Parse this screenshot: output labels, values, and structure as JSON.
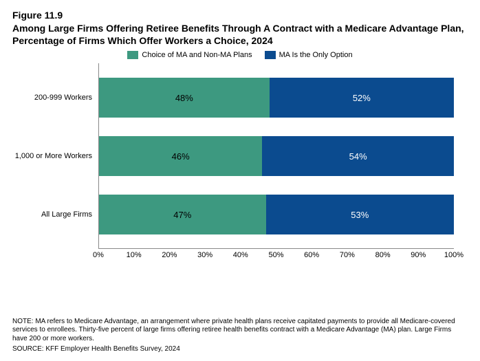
{
  "figure_number": "Figure 11.9",
  "figure_title": "Among Large Firms Offering Retiree Benefits Through A Contract with a Medicare Advantage Plan, Percentage of Firms Which Offer Workers a Choice, 2024",
  "legend": {
    "series_a": {
      "label": "Choice of MA and Non-MA Plans",
      "color": "#3d9980"
    },
    "series_b": {
      "label": "MA Is the Only Option",
      "color": "#0b4b8f"
    }
  },
  "chart": {
    "type": "stacked-bar-horizontal",
    "background_color": "#ffffff",
    "border_color": "#888888",
    "xlim": [
      0,
      100
    ],
    "xtick_step": 10,
    "xticks": [
      "0%",
      "10%",
      "20%",
      "30%",
      "40%",
      "50%",
      "60%",
      "70%",
      "80%",
      "90%",
      "100%"
    ],
    "bar_fontsize": 13,
    "label_fontsize": 11,
    "rows": [
      {
        "category": "200-999 Workers",
        "a_value": 48,
        "a_label": "48%",
        "b_value": 52,
        "b_label": "52%"
      },
      {
        "category": "1,000 or More Workers",
        "a_value": 46,
        "a_label": "46%",
        "b_value": 54,
        "b_label": "54%"
      },
      {
        "category": "All Large Firms",
        "a_value": 47,
        "a_label": "47%",
        "b_value": 53,
        "b_label": "53%"
      }
    ]
  },
  "note": "NOTE: MA refers to Medicare Advantage, an arrangement where private health plans receive capitated payments to provide all Medicare-covered services to enrollees.  Thirty-five percent of large firms offering retiree health benefits contract with a Medicare Advantage (MA) plan.  Large Firms have 200 or more workers.",
  "source": "SOURCE: KFF Employer Health Benefits Survey, 2024"
}
